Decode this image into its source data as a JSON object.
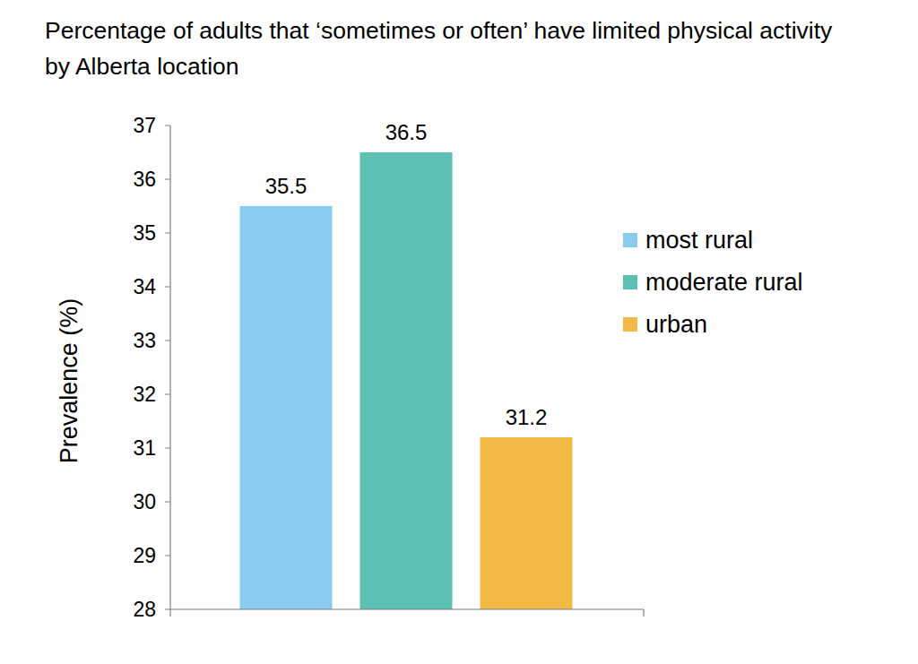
{
  "chart_data": {
    "type": "bar",
    "title": "Percentage of adults that ‘sometimes or often’ have limited physical activity by Alberta location",
    "y_label": "Prevalence (%)",
    "categories": [
      null
    ],
    "series": [
      {
        "name": "most rural",
        "color": "#89ccf0",
        "values": [
          35.5
        ]
      },
      {
        "name": "moderate rural",
        "color": "#5cc1b3",
        "values": [
          36.5
        ]
      },
      {
        "name": "urban",
        "color": "#f2b944",
        "values": [
          31.2
        ]
      }
    ],
    "ylim": [
      28,
      37
    ],
    "yticks": [
      28,
      29,
      30,
      31,
      32,
      33,
      34,
      35,
      36,
      37
    ],
    "grid": false,
    "legend": "right",
    "data_labels": true
  }
}
